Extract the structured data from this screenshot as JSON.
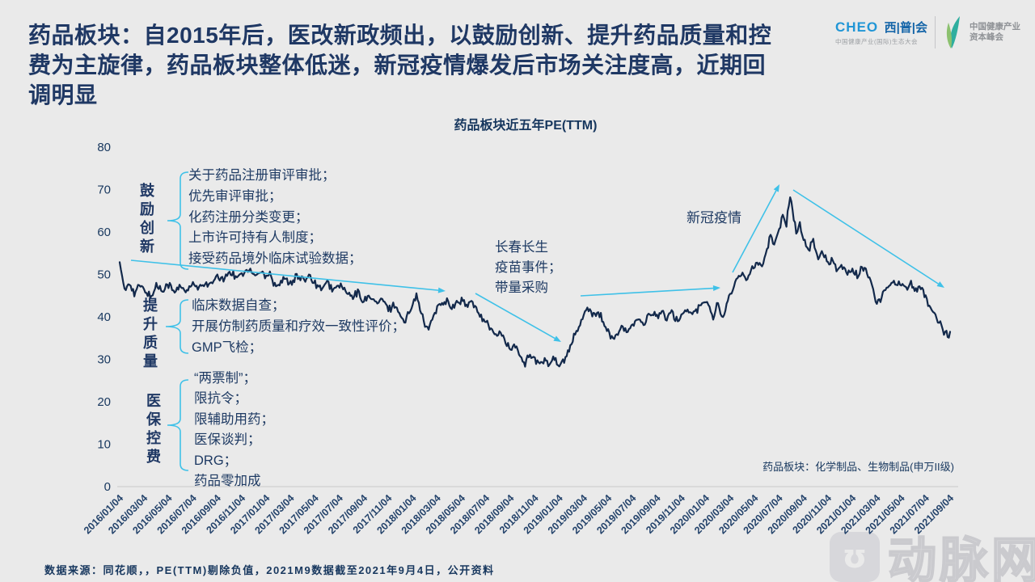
{
  "slide": {
    "title_lines": [
      "药品板块：自2015年后，医改新政频出，以鼓励创新、提升药品质量和控",
      "费为主旋律，药品板块整体低迷，新冠疫情爆发后市场关注度高，近期回",
      "调明显"
    ],
    "footer": "数据来源：同花顺，，PE(TTM)剔除负值，2021M9数据截至2021年9月4日，公开资料",
    "accent_color": "#3FC1E8",
    "line_color": "#13294B",
    "text_color": "#1F3864"
  },
  "logos": {
    "cheo_en": "CHEO",
    "cheo_cn": "西|普|会",
    "cheo_sub": "中国健康产业(国际)生态大会",
    "summit_line1": "中国健康产业",
    "summit_line2": "资本峰会",
    "leaf_icon": "leaf-icon"
  },
  "watermark": {
    "glyph": "ʊ",
    "text": "动脉网"
  },
  "policy_groups": [
    {
      "label": "鼓励创新",
      "items": [
        "关于药品注册审评审批；",
        "优先审评审批；",
        "化药注册分类变更；",
        "上市许可持有人制度；",
        "接受药品境外临床试验数据；"
      ]
    },
    {
      "label": "提升质量",
      "items": [
        "临床数据自查；",
        "开展仿制药质量和疗效一致性评价；",
        "GMP飞检；"
      ]
    },
    {
      "label": "医保控费",
      "items": [
        "“两票制”；",
        "限抗令；",
        "限辅助用药；",
        "医保谈判；",
        "DRG；",
        "药品零加成"
      ]
    }
  ],
  "events": [
    {
      "lines": [
        "长春长生",
        "疫苗事件；",
        "带量采购"
      ]
    },
    {
      "lines": [
        "新冠疫情"
      ]
    }
  ],
  "chart_data": {
    "type": "line",
    "title": "药品板块近五年PE(TTM)",
    "series_note": "药品板块：化学制品、生物制品(申万II级)",
    "ylabel": "PE(TTM)",
    "ylim": [
      0,
      80
    ],
    "yticks": [
      0,
      10,
      20,
      30,
      40,
      50,
      60,
      70,
      80
    ],
    "grid": false,
    "xticks": [
      "2016/01/04",
      "2016/03/04",
      "2016/05/04",
      "2016/07/04",
      "2016/09/04",
      "2016/11/04",
      "2017/01/04",
      "2017/03/04",
      "2017/05/04",
      "2017/07/04",
      "2017/09/04",
      "2017/11/04",
      "2018/01/04",
      "2018/03/04",
      "2018/05/04",
      "2018/07/04",
      "2018/09/04",
      "2018/11/04",
      "2019/01/04",
      "2019/03/04",
      "2019/05/04",
      "2019/07/04",
      "2019/09/04",
      "2019/11/04",
      "2020/01/04",
      "2020/03/04",
      "2020/05/04",
      "2020/07/04",
      "2020/09/04",
      "2020/11/04",
      "2021/01/04",
      "2021/03/04",
      "2021/05/04",
      "2021/07/04",
      "2021/09/04"
    ],
    "points_note": "pairs of [months since 2016/01/04, PE(TTM) value] sampled from the curve",
    "points": [
      [
        0,
        54
      ],
      [
        0.2,
        49
      ],
      [
        0.4,
        46
      ],
      [
        0.8,
        48.3
      ],
      [
        1.2,
        45.2
      ],
      [
        1.6,
        47.8
      ],
      [
        2,
        46.4
      ],
      [
        2.5,
        44.6
      ],
      [
        3,
        47.3
      ],
      [
        3.5,
        46.2
      ],
      [
        4,
        47.8
      ],
      [
        4.5,
        45.6
      ],
      [
        5,
        47.2
      ],
      [
        5.5,
        46
      ],
      [
        6,
        47.4
      ],
      [
        6.5,
        46.8
      ],
      [
        7,
        48.2
      ],
      [
        7.5,
        47.6
      ],
      [
        8,
        49.4
      ],
      [
        8.5,
        48.8
      ],
      [
        9,
        50.6
      ],
      [
        9.5,
        49.6
      ],
      [
        10,
        50.2
      ],
      [
        10.5,
        51
      ],
      [
        11,
        50
      ],
      [
        11.5,
        50.6
      ],
      [
        12,
        49.8
      ],
      [
        12.3,
        50.8
      ],
      [
        12.6,
        48
      ],
      [
        13,
        47.6
      ],
      [
        13.5,
        49
      ],
      [
        14,
        48.2
      ],
      [
        14.5,
        49.6
      ],
      [
        15,
        48.6
      ],
      [
        15.5,
        49.8
      ],
      [
        16,
        48
      ],
      [
        16.5,
        46.6
      ],
      [
        17,
        47.8
      ],
      [
        17.5,
        46.4
      ],
      [
        18,
        47.6
      ],
      [
        18.5,
        46
      ],
      [
        19,
        44.4
      ],
      [
        19.5,
        45.8
      ],
      [
        20,
        43.6
      ],
      [
        20.5,
        45
      ],
      [
        21,
        43
      ],
      [
        21.5,
        44.2
      ],
      [
        22,
        41.6
      ],
      [
        22.5,
        43
      ],
      [
        23,
        40.4
      ],
      [
        23.3,
        38.6
      ],
      [
        23.7,
        41
      ],
      [
        24,
        43.8
      ],
      [
        24.3,
        44.8
      ],
      [
        24.7,
        41
      ],
      [
        25,
        38
      ],
      [
        25.3,
        37
      ],
      [
        25.7,
        40.6
      ],
      [
        26,
        42.4
      ],
      [
        26.5,
        43.2
      ],
      [
        26.8,
        44
      ],
      [
        27.2,
        42
      ],
      [
        27.6,
        43.4
      ],
      [
        28,
        43.8
      ],
      [
        28.4,
        42.6
      ],
      [
        28.8,
        43.6
      ],
      [
        29.2,
        41.8
      ],
      [
        29.6,
        40.2
      ],
      [
        30,
        38.8
      ],
      [
        30.4,
        37.2
      ],
      [
        30.8,
        35.4
      ],
      [
        31.2,
        36.6
      ],
      [
        31.6,
        34
      ],
      [
        32,
        32.2
      ],
      [
        32.4,
        33.4
      ],
      [
        32.8,
        30.6
      ],
      [
        33.2,
        29.2
      ],
      [
        33.6,
        31
      ],
      [
        34,
        29.6
      ],
      [
        34.4,
        28.6
      ],
      [
        34.8,
        30.2
      ],
      [
        35.2,
        29
      ],
      [
        35.6,
        30.4
      ],
      [
        36,
        28.4
      ],
      [
        36.4,
        29.8
      ],
      [
        36.8,
        32.4
      ],
      [
        37.2,
        35
      ],
      [
        37.6,
        37.8
      ],
      [
        38,
        40
      ],
      [
        38.4,
        42
      ],
      [
        38.8,
        40.6
      ],
      [
        39.2,
        41.4
      ],
      [
        39.6,
        38.8
      ],
      [
        40,
        36.4
      ],
      [
        40.4,
        34.6
      ],
      [
        40.8,
        36.2
      ],
      [
        41.2,
        37.4
      ],
      [
        41.6,
        36.6
      ],
      [
        42,
        38
      ],
      [
        42.4,
        39.2
      ],
      [
        42.8,
        38.2
      ],
      [
        43.2,
        39.6
      ],
      [
        43.6,
        41
      ],
      [
        44,
        40
      ],
      [
        44.4,
        41.2
      ],
      [
        44.8,
        39.8
      ],
      [
        45.2,
        40.8
      ],
      [
        45.6,
        39.4
      ],
      [
        46,
        40.6
      ],
      [
        46.4,
        41.8
      ],
      [
        46.8,
        40.4
      ],
      [
        47.2,
        41.6
      ],
      [
        47.6,
        42.8
      ],
      [
        48,
        43.6
      ],
      [
        48.3,
        42
      ],
      [
        48.6,
        40.2
      ],
      [
        48.9,
        43
      ],
      [
        49.2,
        41
      ],
      [
        49.5,
        40
      ],
      [
        49.8,
        44
      ],
      [
        50.2,
        47
      ],
      [
        50.6,
        48.6
      ],
      [
        51,
        50
      ],
      [
        51.4,
        49
      ],
      [
        51.8,
        51.6
      ],
      [
        52.2,
        53
      ],
      [
        52.6,
        52
      ],
      [
        53,
        55.6
      ],
      [
        53.3,
        59
      ],
      [
        53.6,
        57
      ],
      [
        54,
        61
      ],
      [
        54.3,
        64
      ],
      [
        54.6,
        62
      ],
      [
        54.9,
        68.4
      ],
      [
        55.1,
        65
      ],
      [
        55.4,
        60
      ],
      [
        55.7,
        62
      ],
      [
        56,
        58.5
      ],
      [
        56.4,
        56
      ],
      [
        56.8,
        57.5
      ],
      [
        57.2,
        54
      ],
      [
        57.6,
        55.5
      ],
      [
        58,
        52.5
      ],
      [
        58.4,
        53.5
      ],
      [
        58.8,
        51
      ],
      [
        59.2,
        52
      ],
      [
        59.6,
        50
      ],
      [
        60,
        51.5
      ],
      [
        60.4,
        49.5
      ],
      [
        60.8,
        51.8
      ],
      [
        61.2,
        50.5
      ],
      [
        61.6,
        48
      ],
      [
        62,
        43
      ],
      [
        62.4,
        44.5
      ],
      [
        62.8,
        47
      ],
      [
        63.2,
        48.6
      ],
      [
        63.6,
        47.5
      ],
      [
        64,
        48.4
      ],
      [
        64.4,
        46.5
      ],
      [
        64.8,
        47.6
      ],
      [
        65.2,
        45.8
      ],
      [
        65.6,
        46.8
      ],
      [
        66,
        44.5
      ],
      [
        66.4,
        42
      ],
      [
        66.8,
        40.5
      ],
      [
        67.2,
        38.5
      ],
      [
        67.6,
        36.2
      ],
      [
        67.9,
        35.3
      ],
      [
        68,
        36.5
      ]
    ]
  }
}
